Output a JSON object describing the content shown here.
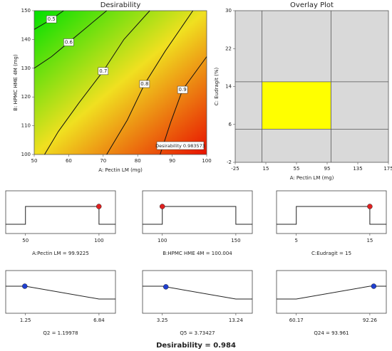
{
  "chart_data": [
    {
      "type": "contour",
      "title": "Desirability",
      "xlabel": "A: Pectin LM (mg)",
      "ylabel": "B: HPMC HME 4M (mg)",
      "xlim": [
        50,
        100
      ],
      "xticks": [
        50,
        60,
        70,
        80,
        90,
        100
      ],
      "ylim": [
        100,
        150
      ],
      "yticks": [
        100,
        110,
        120,
        130,
        140,
        150
      ],
      "annotation": "Desirability  0.983573",
      "contours": [
        {
          "level": 0.5,
          "x": [
            58.5,
            55,
            50
          ],
          "y": [
            150,
            147,
            143.5
          ]
        },
        {
          "level": 0.6,
          "x": [
            71,
            66,
            60,
            55,
            50
          ],
          "y": [
            150,
            145,
            139,
            134,
            130
          ]
        },
        {
          "level": 0.7,
          "x": [
            83.5,
            76,
            70,
            63,
            57,
            53
          ],
          "y": [
            150,
            140,
            129,
            118,
            108,
            100
          ]
        },
        {
          "level": 0.8,
          "x": [
            96,
            88,
            82,
            77,
            71
          ],
          "y": [
            150,
            136,
            124.5,
            112,
            100
          ]
        },
        {
          "level": 0.9,
          "x": [
            100,
            93,
            89.5,
            86.5
          ],
          "y": [
            134,
            122.5,
            111,
            100
          ]
        }
      ]
    },
    {
      "type": "overlay",
      "title": "Overlay Plot",
      "xlabel": "A: Pectin LM (mg)",
      "ylabel": "C: Eudragit (%)",
      "xlim": [
        -25,
        175
      ],
      "xticks": [
        -25,
        15,
        55,
        95,
        135,
        175
      ],
      "ylim": [
        -2,
        30
      ],
      "yticks": [
        30,
        22,
        14,
        6,
        -2
      ],
      "region": {
        "x": [
          10,
          100
        ],
        "y": [
          5,
          15
        ],
        "color": "#ffff00"
      }
    },
    {
      "type": "ramp",
      "shape": "range",
      "label": "A:Pectin LM = 99.9225",
      "value": 99.9225,
      "ticks": [
        50,
        100
      ],
      "color": "#e02020"
    },
    {
      "type": "ramp",
      "shape": "range",
      "label": "B:HPMC HME 4M = 100.004",
      "value": 100.004,
      "ticks": [
        100,
        150
      ],
      "color": "#e02020"
    },
    {
      "type": "ramp",
      "shape": "range",
      "label": "C:Eudragit = 15",
      "value": 15,
      "ticks": [
        5,
        15
      ],
      "color": "#e02020"
    },
    {
      "type": "ramp",
      "shape": "minimize",
      "label": "Q2 = 1.19978",
      "value": 1.19978,
      "ticks": [
        1.25,
        6.84
      ],
      "color": "#1f3fd0"
    },
    {
      "type": "ramp",
      "shape": "minimize",
      "label": "Q5 = 3.73427",
      "value": 3.73427,
      "ticks": [
        3.25,
        13.24
      ],
      "color": "#1f3fd0"
    },
    {
      "type": "ramp",
      "shape": "maximize",
      "label": "Q24 = 93.961",
      "value": 93.961,
      "ticks": [
        60.17,
        92.26
      ],
      "color": "#1f3fd0"
    }
  ],
  "footer": "Desirability = 0.984"
}
